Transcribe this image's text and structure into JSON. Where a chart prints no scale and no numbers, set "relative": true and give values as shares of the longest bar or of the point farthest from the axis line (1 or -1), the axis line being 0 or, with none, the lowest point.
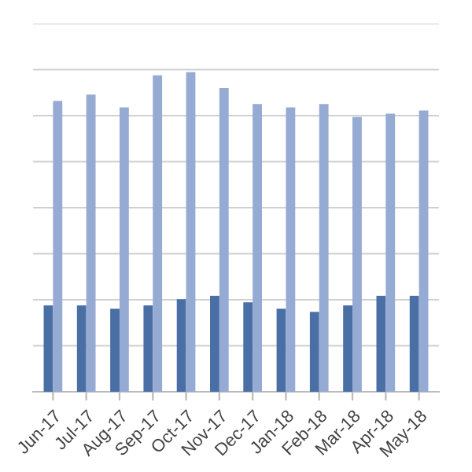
{
  "chart_data": {
    "type": "bar",
    "relative": true,
    "grid": "y",
    "categories": [
      "Jun-17",
      "Jul-17",
      "Aug-17",
      "Sep-17",
      "Oct-17",
      "Nov-17",
      "Dec-17",
      "Jan-18",
      "Feb-18",
      "Mar-18",
      "Apr-18",
      "May-18"
    ],
    "series": [
      {
        "color": "#4a6fa5",
        "values": [
          0.27,
          0.27,
          0.26,
          0.27,
          0.29,
          0.3,
          0.28,
          0.26,
          0.25,
          0.27,
          0.3,
          0.3
        ]
      },
      {
        "color": "#95abd3",
        "values": [
          0.91,
          0.93,
          0.89,
          0.99,
          1,
          0.95,
          0.9,
          0.89,
          0.9,
          0.86,
          0.87,
          0.88
        ]
      }
    ]
  }
}
